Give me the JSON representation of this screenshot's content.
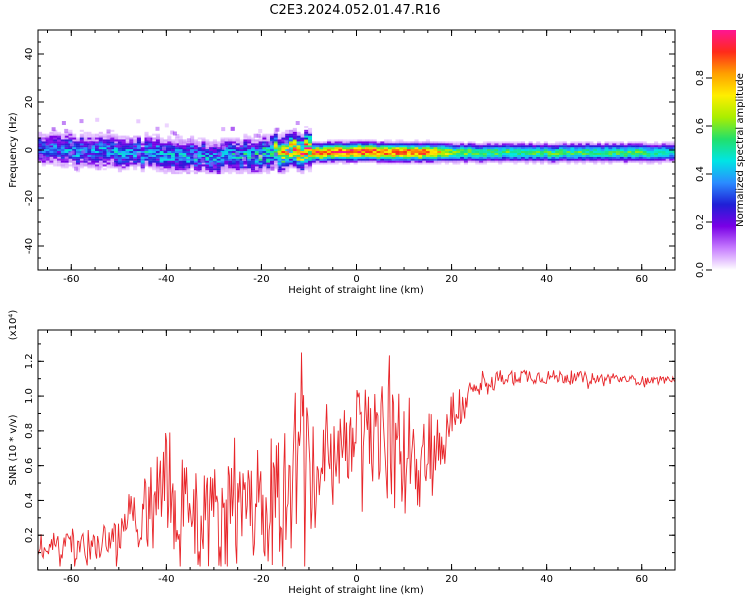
{
  "title": "C2E3.2024.052.01.47.R16",
  "colors": {
    "snr_line": "#e8262a",
    "frame": "#000000",
    "colormap_stops": [
      "#ffffff",
      "#c77dff",
      "#7a00e6",
      "#1f1fd6",
      "#2b8cff",
      "#00e5e5",
      "#22e06a",
      "#aaee00",
      "#ffee00",
      "#ffa000",
      "#ff2a1a",
      "#ff1493"
    ]
  },
  "chart_data": [
    {
      "type": "heatmap",
      "xlabel": "Height of straight line (km)",
      "ylabel": "Frequency (Hz)",
      "xlim": [
        -67,
        67
      ],
      "ylim": [
        -50,
        50
      ],
      "xticks": [
        "-60",
        "-40",
        "-20",
        "0",
        "20",
        "40",
        "60"
      ],
      "yticks": [
        "40",
        "20",
        "0",
        "-20",
        "-40"
      ],
      "colorbar": {
        "label": "Normalized spectral amplitude",
        "range": [
          0,
          1
        ],
        "ticks": [
          "0.0",
          "0.2",
          "0.4",
          "0.6",
          "0.8"
        ]
      },
      "ridge_center_hz": [
        [
          -66,
          0.0
        ],
        [
          -60,
          0.0
        ],
        [
          -50,
          -1.5
        ],
        [
          -40,
          -2.5
        ],
        [
          -30,
          -3.5
        ],
        [
          -20,
          -1.5
        ],
        [
          -15,
          -1.0
        ],
        [
          -10,
          -1.5
        ],
        [
          0,
          -1.0
        ],
        [
          10,
          -1.5
        ],
        [
          20,
          -1.5
        ],
        [
          30,
          -1.5
        ],
        [
          40,
          -1.5
        ],
        [
          50,
          -1.5
        ],
        [
          60,
          -1.5
        ],
        [
          67,
          -1.5
        ]
      ],
      "ridge_amplitude": [
        [
          -66,
          0.3
        ],
        [
          -60,
          0.35
        ],
        [
          -50,
          0.35
        ],
        [
          -40,
          0.38
        ],
        [
          -30,
          0.35
        ],
        [
          -20,
          0.45
        ],
        [
          -15,
          0.7
        ],
        [
          -10,
          0.85
        ],
        [
          0,
          0.9
        ],
        [
          5,
          0.85
        ],
        [
          10,
          0.88
        ],
        [
          15,
          0.85
        ],
        [
          20,
          0.6
        ],
        [
          30,
          0.55
        ],
        [
          40,
          0.55
        ],
        [
          50,
          0.55
        ],
        [
          60,
          0.55
        ],
        [
          67,
          0.45
        ]
      ]
    },
    {
      "type": "line",
      "xlabel": "Height of straight line (km)",
      "ylabel": "SNR (10 * v/v)",
      "y_multiplier": "(x10⁴)",
      "xlim": [
        -67,
        67
      ],
      "ylim": [
        0,
        1.38
      ],
      "xticks": [
        "-60",
        "-40",
        "-20",
        "0",
        "20",
        "40",
        "60"
      ],
      "yticks": [
        "0.2",
        "0.4",
        "0.6",
        "0.8",
        "1.0",
        "1.2"
      ],
      "series": [
        {
          "values_xy": [
            [
              -67,
              0.14
            ],
            [
              -60,
              0.15
            ],
            [
              -55,
              0.15
            ],
            [
              -50,
              0.18
            ],
            [
              -47,
              0.3
            ],
            [
              -45,
              0.38
            ],
            [
              -42,
              0.45
            ],
            [
              -40,
              0.5
            ],
            [
              -35,
              0.38
            ],
            [
              -30,
              0.3
            ],
            [
              -25,
              0.3
            ],
            [
              -22,
              0.32
            ],
            [
              -18,
              0.35
            ],
            [
              -15,
              0.45
            ],
            [
              -13,
              0.6
            ],
            [
              -12,
              0.85
            ],
            [
              -10,
              0.55
            ],
            [
              -8,
              0.45
            ],
            [
              -5,
              0.6
            ],
            [
              -2,
              0.72
            ],
            [
              0,
              0.8
            ],
            [
              3,
              0.78
            ],
            [
              5,
              0.75
            ],
            [
              8,
              0.68
            ],
            [
              10,
              0.68
            ],
            [
              12,
              0.68
            ],
            [
              15,
              0.66
            ],
            [
              18,
              0.72
            ],
            [
              20,
              0.88
            ],
            [
              22,
              0.95
            ],
            [
              25,
              1.02
            ],
            [
              28,
              1.08
            ],
            [
              30,
              1.1
            ],
            [
              35,
              1.12
            ],
            [
              40,
              1.11
            ],
            [
              45,
              1.11
            ],
            [
              50,
              1.1
            ],
            [
              55,
              1.1
            ],
            [
              60,
              1.09
            ],
            [
              65,
              1.09
            ],
            [
              67,
              1.09
            ]
          ],
          "noise_amplitude": [
            [
              -67,
              0.08
            ],
            [
              -50,
              0.1
            ],
            [
              -45,
              0.28
            ],
            [
              -40,
              0.35
            ],
            [
              -30,
              0.3
            ],
            [
              -20,
              0.28
            ],
            [
              -14,
              0.45
            ],
            [
              -12,
              0.5
            ],
            [
              -8,
              0.35
            ],
            [
              -2,
              0.22
            ],
            [
              5,
              0.35
            ],
            [
              12,
              0.4
            ],
            [
              18,
              0.2
            ],
            [
              25,
              0.08
            ],
            [
              30,
              0.05
            ],
            [
              67,
              0.02
            ]
          ]
        }
      ]
    }
  ]
}
